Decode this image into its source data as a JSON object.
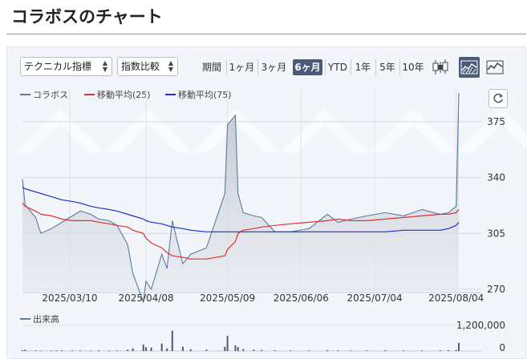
{
  "page": {
    "title": "コラボスのチャート"
  },
  "toolbar": {
    "indicator_select": "テクニカル指標",
    "compare_select": "指数比較",
    "period_label": "期間",
    "ranges": [
      "1ヶ月",
      "3ヶ月",
      "6ヶ月",
      "YTD",
      "1年",
      "5年",
      "10年"
    ],
    "active_range": "6ヶ月",
    "chart_types": [
      "candlestick-icon",
      "area-chart-icon",
      "line-chart-icon"
    ],
    "active_chart_type": "area-chart-icon"
  },
  "legend": {
    "price": "コラボス",
    "ma25": "移動平均(25)",
    "ma75": "移動平均(75)",
    "volume": "出来高"
  },
  "colors": {
    "price": "#5a7aa0",
    "ma25": "#e03030",
    "ma75": "#1a2fd0",
    "accent": "#4a5a78"
  },
  "chart_data": [
    {
      "type": "area",
      "series": [
        {
          "name": "コラボス",
          "x": [
            "2025/02/20",
            "2025/02/21",
            "2025/02/25",
            "2025/02/27",
            "2025/03/03",
            "2025/03/05",
            "2025/03/07",
            "2025/03/11",
            "2025/03/14",
            "2025/03/18",
            "2025/03/21",
            "2025/03/25",
            "2025/03/28",
            "2025/04/01",
            "2025/04/03",
            "2025/04/07",
            "2025/04/08",
            "2025/04/10",
            "2025/04/14",
            "2025/04/16",
            "2025/04/18",
            "2025/04/22",
            "2025/04/25",
            "2025/05/01",
            "2025/05/08",
            "2025/05/09",
            "2025/05/12",
            "2025/05/13",
            "2025/05/15",
            "2025/05/19",
            "2025/05/22",
            "2025/05/27",
            "2025/06/02",
            "2025/06/09",
            "2025/06/16",
            "2025/06/20",
            "2025/06/25",
            "2025/07/01",
            "2025/07/08",
            "2025/07/15",
            "2025/07/22",
            "2025/07/29",
            "2025/08/01",
            "2025/08/04",
            "2025/08/05"
          ],
          "values": [
            339,
            323,
            315,
            305,
            308,
            310,
            312,
            316,
            319,
            317,
            314,
            313,
            310,
            298,
            280,
            262,
            275,
            270,
            292,
            283,
            313,
            286,
            292,
            296,
            330,
            373,
            379,
            330,
            318,
            316,
            315,
            306,
            306,
            308,
            317,
            312,
            314,
            316,
            318,
            316,
            320,
            317,
            318,
            322,
            393
          ]
        },
        {
          "name": "移動平均(25)",
          "values": [
            324,
            322,
            319,
            317,
            316,
            315,
            314,
            313,
            313,
            313,
            312,
            311,
            310,
            309,
            307,
            305,
            302,
            299,
            296,
            293,
            291,
            290,
            289,
            289,
            291,
            295,
            300,
            305,
            307,
            308,
            309,
            310,
            311,
            312,
            313,
            314,
            313,
            313,
            314,
            315,
            316,
            317,
            317,
            318,
            320
          ]
        },
        {
          "name": "移動平均(75)",
          "values": [
            334,
            333,
            331,
            330,
            328,
            327,
            326,
            325,
            324,
            322,
            321,
            320,
            319,
            317,
            316,
            314,
            313,
            312,
            311,
            310,
            309,
            308,
            307,
            306,
            306,
            306,
            306,
            306,
            306,
            306,
            306,
            306,
            306,
            306,
            306,
            306,
            306,
            306,
            306,
            307,
            307,
            307,
            308,
            310,
            312
          ]
        }
      ],
      "x_tick_labels": [
        "2025/03/10",
        "2025/04/08",
        "2025/05/09",
        "2025/06/06",
        "2025/07/04",
        "2025/08/04"
      ],
      "y_tick_labels": [
        "375",
        "340",
        "305",
        "270"
      ],
      "ylim": [
        268,
        395
      ],
      "grid": true,
      "legend_placement": "top-left"
    },
    {
      "type": "bar",
      "series": [
        {
          "name": "出来高",
          "values": [
            40000,
            60000,
            30000,
            20000,
            25000,
            30000,
            35000,
            30000,
            25000,
            20000,
            30000,
            25000,
            30000,
            60000,
            120000,
            300000,
            180000,
            160000,
            350000,
            120000,
            950000,
            200000,
            80000,
            60000,
            200000,
            700000,
            260000,
            180000,
            90000,
            60000,
            50000,
            40000,
            35000,
            30000,
            40000,
            30000,
            25000,
            30000,
            35000,
            30000,
            25000,
            30000,
            40000,
            50000,
            380000
          ]
        }
      ],
      "y_tick_labels": [
        "1,200,000",
        "0"
      ],
      "ylim": [
        0,
        1200000
      ]
    }
  ]
}
